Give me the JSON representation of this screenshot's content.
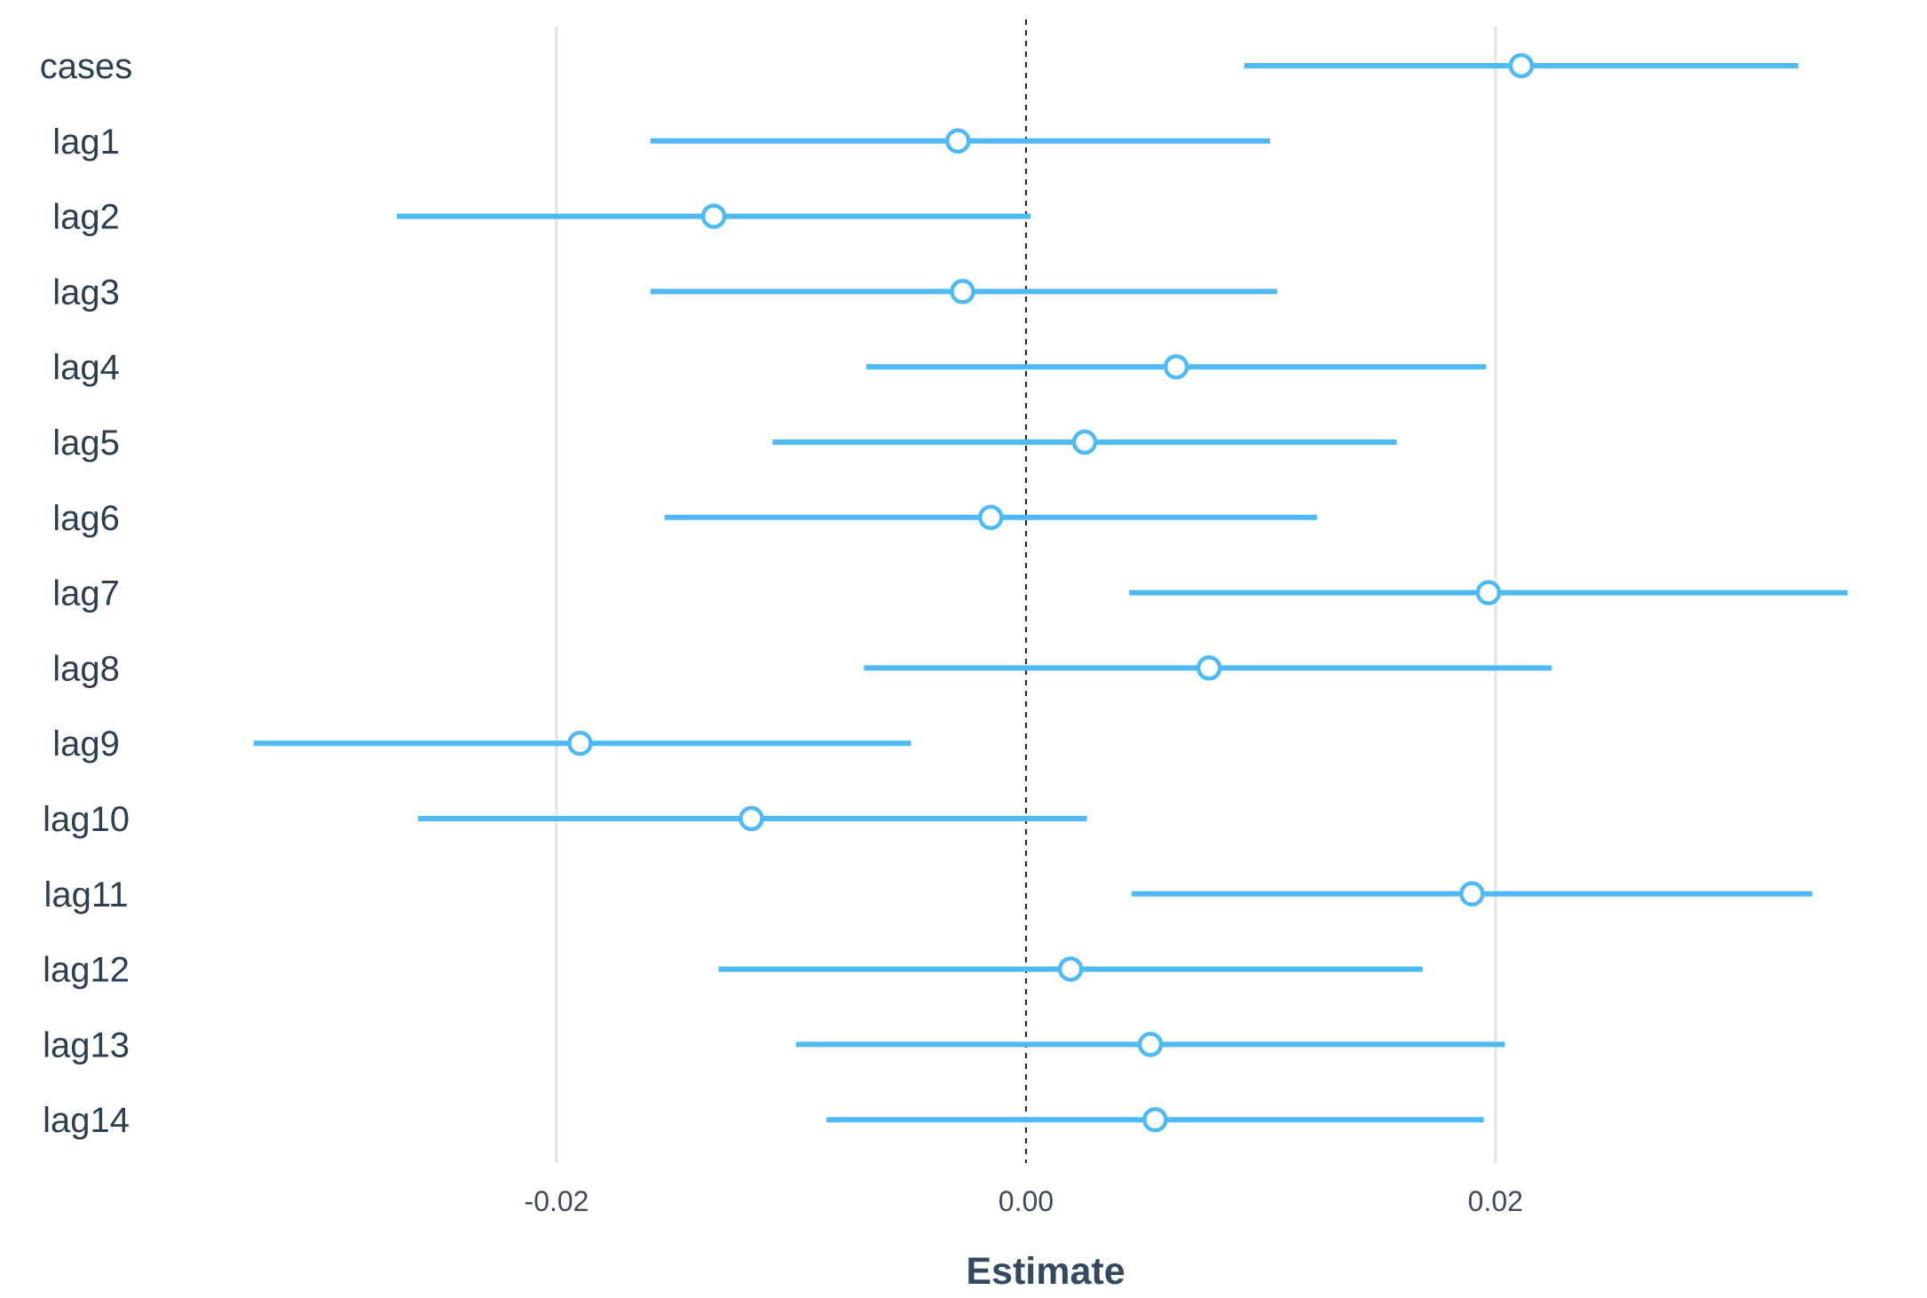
{
  "chart_data": {
    "type": "forest",
    "title": "",
    "xlabel": "Estimate",
    "ylabel": "",
    "xlim": [
      -0.0335,
      0.0357
    ],
    "xticks": [
      -0.02,
      0.0,
      0.02
    ],
    "xtick_labels": [
      "-0.02",
      "0.00",
      "0.02"
    ],
    "reference_line": 0,
    "grid": "vertical major gridlines",
    "legend": "none",
    "categories": [
      "cases",
      "lag1",
      "lag2",
      "lag3",
      "lag4",
      "lag5",
      "lag6",
      "lag7",
      "lag8",
      "lag9",
      "lag10",
      "lag11",
      "lag12",
      "lag13",
      "lag14"
    ],
    "estimate": [
      0.0211,
      -0.0029,
      -0.0133,
      -0.0027,
      0.0064,
      0.0025,
      -0.0015,
      0.0197,
      0.0078,
      -0.019,
      -0.0117,
      0.019,
      0.0019,
      0.0053,
      0.0055
    ],
    "lower": [
      0.0093,
      -0.016,
      -0.0268,
      -0.016,
      -0.0068,
      -0.0108,
      -0.0154,
      0.0044,
      -0.0069,
      -0.0329,
      -0.0259,
      0.0045,
      -0.0131,
      -0.0098,
      -0.0085
    ],
    "upper": [
      0.0329,
      0.0104,
      0.0002,
      0.0107,
      0.0196,
      0.0158,
      0.0124,
      0.035,
      0.0224,
      -0.0049,
      0.0026,
      0.0335,
      0.0169,
      0.0204,
      0.0195
    ]
  },
  "colors": {
    "interval": "#4fb9f4",
    "point_fill": "#ffffff",
    "grid": "#e4e4e4",
    "reference_line": "#1f1f1f",
    "category_text": "#2c3e50",
    "tick_text": "#404a58",
    "axis_title": "#34495e"
  }
}
